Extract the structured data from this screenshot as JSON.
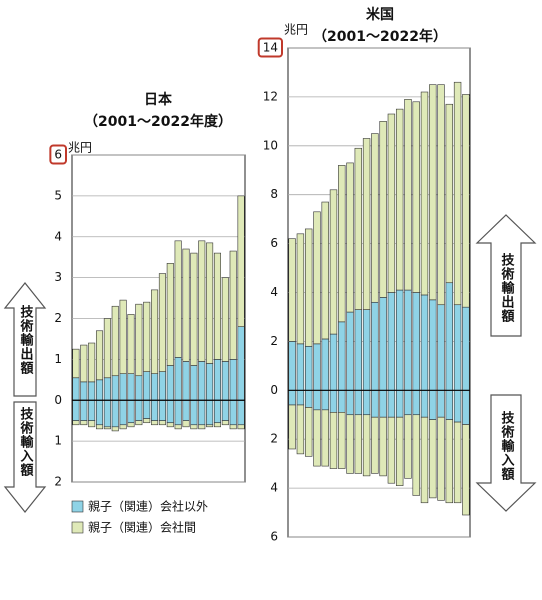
{
  "legend": [
    {
      "name": "親子（関連）会社以外",
      "color": "#8fd3e6"
    },
    {
      "name": "親子（関連）会社間",
      "color": "#dfe9b8"
    }
  ],
  "chart_data": [
    {
      "type": "bar",
      "title": "日本",
      "subtitle": "（2001～2022年度）",
      "unit": "兆円",
      "export_label": "技術輸出額",
      "import_label": "技術輸入額",
      "highlight_top_tick": true,
      "grid": true,
      "ylim": [
        -2,
        6
      ],
      "yticks": [
        {
          "value": -2,
          "label": "2"
        },
        {
          "value": -1,
          "label": "1"
        },
        0,
        1,
        2,
        3,
        4,
        5,
        6
      ],
      "series": [
        {
          "export": [
            0.55,
            0.45,
            0.45,
            0.5,
            0.55,
            0.6,
            0.65,
            0.65,
            0.6,
            0.7,
            0.65,
            0.7,
            0.85,
            1.05,
            0.95,
            0.85,
            0.95,
            0.9,
            1.0,
            0.95,
            1.0,
            1.8
          ],
          "import": [
            -0.5,
            -0.5,
            -0.5,
            -0.6,
            -0.65,
            -0.65,
            -0.6,
            -0.55,
            -0.5,
            -0.45,
            -0.5,
            -0.5,
            -0.55,
            -0.6,
            -0.5,
            -0.6,
            -0.6,
            -0.6,
            -0.55,
            -0.5,
            -0.6,
            -0.6
          ]
        },
        {
          "export": [
            0.7,
            0.9,
            0.95,
            1.2,
            1.45,
            1.7,
            1.8,
            1.45,
            1.75,
            1.7,
            2.05,
            2.4,
            2.5,
            2.85,
            2.75,
            2.75,
            2.95,
            2.95,
            2.6,
            2.05,
            2.65,
            3.2
          ],
          "import": [
            -0.1,
            -0.1,
            -0.15,
            -0.1,
            -0.05,
            -0.1,
            -0.1,
            -0.1,
            -0.1,
            -0.1,
            -0.1,
            -0.1,
            -0.1,
            -0.1,
            -0.15,
            -0.1,
            -0.1,
            -0.05,
            -0.1,
            -0.1,
            -0.1,
            -0.1
          ]
        }
      ]
    },
    {
      "type": "bar",
      "title": "米国",
      "subtitle": "（2001～2022年）",
      "unit": "兆円",
      "export_label": "技術輸出額",
      "import_label": "技術輸入額",
      "highlight_top_tick": true,
      "grid": true,
      "ylim": [
        -6,
        14
      ],
      "yticks": [
        {
          "value": -6,
          "label": "6"
        },
        {
          "value": -4,
          "label": "4"
        },
        {
          "value": -2,
          "label": "2"
        },
        0,
        2,
        4,
        6,
        8,
        10,
        12,
        14
      ],
      "series": [
        {
          "export": [
            2.0,
            1.9,
            1.8,
            1.9,
            2.1,
            2.3,
            2.8,
            3.2,
            3.3,
            3.3,
            3.6,
            3.8,
            4.0,
            4.1,
            4.1,
            4.0,
            3.9,
            3.7,
            3.5,
            4.4,
            3.5,
            3.4
          ],
          "import": [
            -0.6,
            -0.6,
            -0.7,
            -0.8,
            -0.8,
            -0.9,
            -0.9,
            -1.0,
            -1.0,
            -1.0,
            -1.1,
            -1.1,
            -1.1,
            -1.1,
            -1.0,
            -1.0,
            -1.1,
            -1.2,
            -1.1,
            -1.2,
            -1.3,
            -1.4
          ]
        },
        {
          "export": [
            4.2,
            4.5,
            4.8,
            5.4,
            5.6,
            5.9,
            6.4,
            6.1,
            6.6,
            7.0,
            6.9,
            7.2,
            7.3,
            7.4,
            7.8,
            7.8,
            8.3,
            8.8,
            9.0,
            7.3,
            9.1,
            8.7
          ],
          "import": [
            -1.8,
            -2.0,
            -2.0,
            -2.3,
            -2.3,
            -2.3,
            -2.3,
            -2.4,
            -2.4,
            -2.5,
            -2.3,
            -2.4,
            -2.7,
            -2.8,
            -2.6,
            -3.3,
            -3.5,
            -3.2,
            -3.4,
            -3.4,
            -3.3,
            -3.7
          ]
        }
      ]
    }
  ]
}
